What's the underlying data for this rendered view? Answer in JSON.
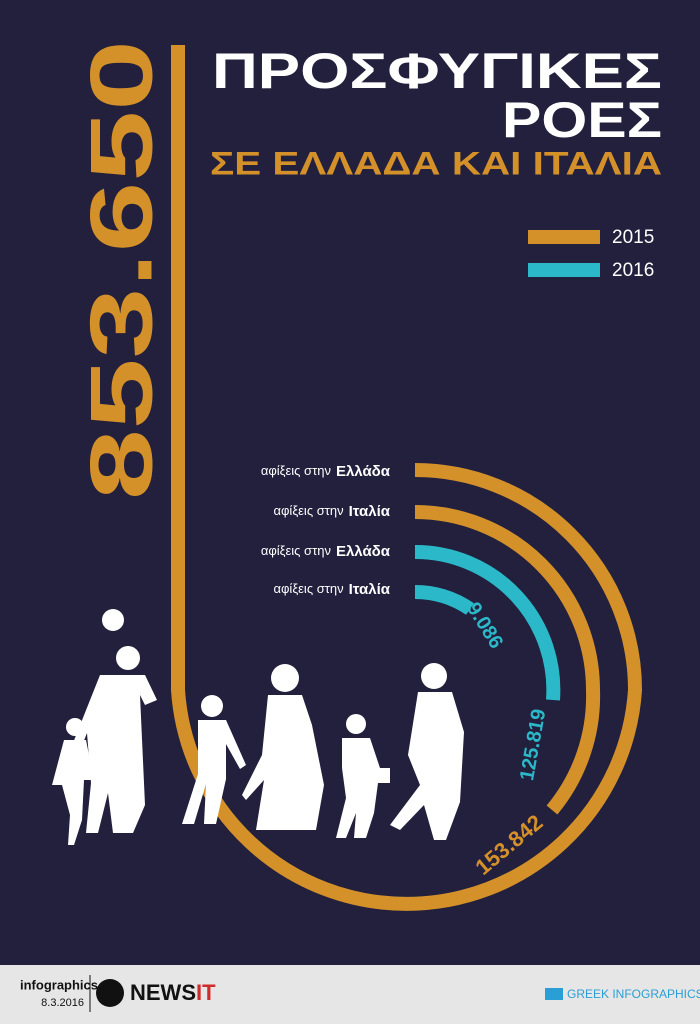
{
  "header": {
    "title_line1": "ΠΡΟΣΦΥΓΙΚΕΣ",
    "title_line2": "ΡΟΕΣ",
    "subtitle": "ΣΕ ΕΛΛΑΔΑ ΚΑΙ ΙΤΑΛΙΑ"
  },
  "legend": [
    {
      "label": "2015",
      "color": "#d4912a"
    },
    {
      "label": "2016",
      "color": "#2bb9c9"
    }
  ],
  "rows": [
    {
      "prefix": "αφίξεις στην",
      "country": "Ελλάδα",
      "value": "853.650"
    },
    {
      "prefix": "αφίξεις στην",
      "country": "Ιταλία",
      "value": "153.842"
    },
    {
      "prefix": "αφίξεις στην",
      "country": "Ελλάδα",
      "value": "125.819"
    },
    {
      "prefix": "αφίξεις στην",
      "country": "Ιταλία",
      "value": "9.086"
    }
  ],
  "footer": {
    "label": "infographics",
    "date": "8.3.2016",
    "logo": "NEWS",
    "logo_accent": "IT",
    "credit": "GREEK INFOGRAPHICS"
  }
}
